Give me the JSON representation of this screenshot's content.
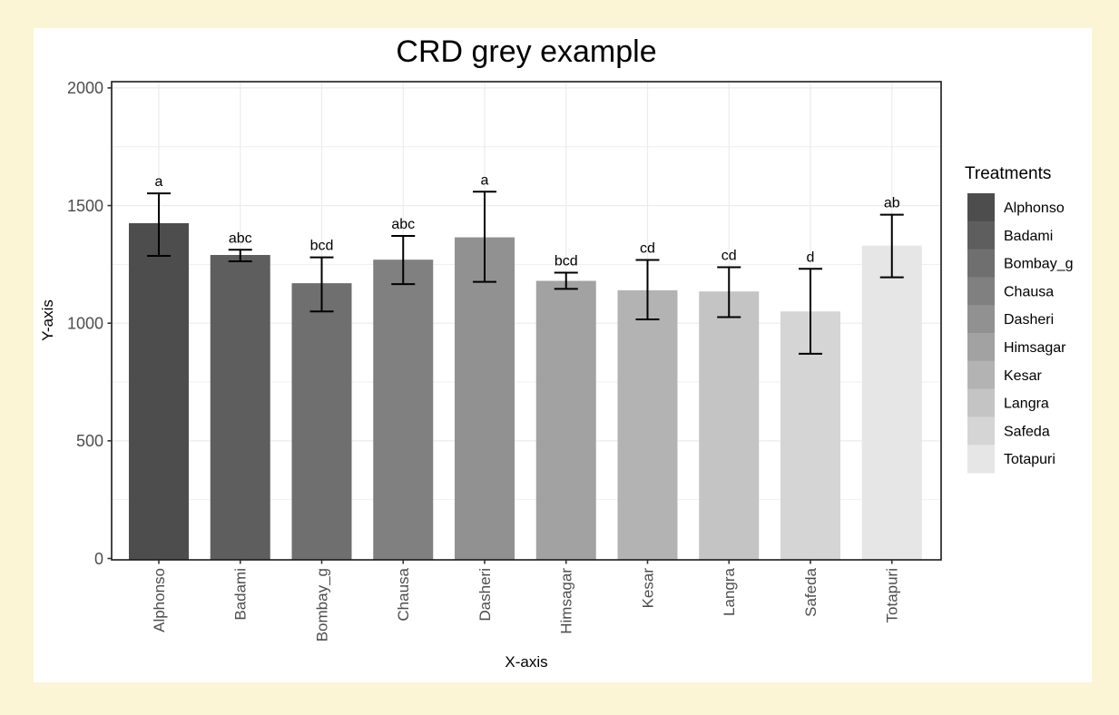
{
  "window": {
    "background_color": "#FBF5D6",
    "card_background_color": "#FFFFFF"
  },
  "chart_data": {
    "type": "bar",
    "title": "CRD grey example",
    "xlabel": "X-axis",
    "ylabel": "Y-axis",
    "ylim": [
      0,
      2000
    ],
    "yticks": [
      0,
      500,
      1000,
      1500,
      2000
    ],
    "minor_yticks": [
      250,
      750,
      1250,
      1750
    ],
    "grid": "on",
    "legend_title": "Treatments",
    "legend_position": "right",
    "categories": [
      "Alphonso",
      "Badami",
      "Bombay_g",
      "Chausa",
      "Dasheri",
      "Himsagar",
      "Kesar",
      "Langra",
      "Safeda",
      "Totapuri"
    ],
    "series": [
      {
        "name": "Treatments",
        "values": [
          1425,
          1290,
          1170,
          1270,
          1365,
          1180,
          1140,
          1135,
          1050,
          1330
        ],
        "error_low": [
          1286,
          1263,
          1050,
          1166,
          1176,
          1146,
          1016,
          1026,
          870,
          1195
        ],
        "error_high": [
          1552,
          1312,
          1280,
          1371,
          1559,
          1215,
          1269,
          1238,
          1231,
          1461
        ],
        "sig_letters": [
          "a",
          "abc",
          "bcd",
          "abc",
          "a",
          "bcd",
          "cd",
          "cd",
          "d",
          "ab"
        ]
      }
    ],
    "bar_colors": [
      "#4D4D4D",
      "#5E5E5E",
      "#6F6F6F",
      "#808080",
      "#919191",
      "#A2A2A2",
      "#B3B3B3",
      "#C4C4C4",
      "#D5D5D5",
      "#E6E6E6"
    ],
    "style_colors": {
      "gridline": "#EBEBEB",
      "panel_border": "#1A1A1A",
      "axis_text": "#4D4D4D",
      "error_bar": "#000000"
    }
  }
}
